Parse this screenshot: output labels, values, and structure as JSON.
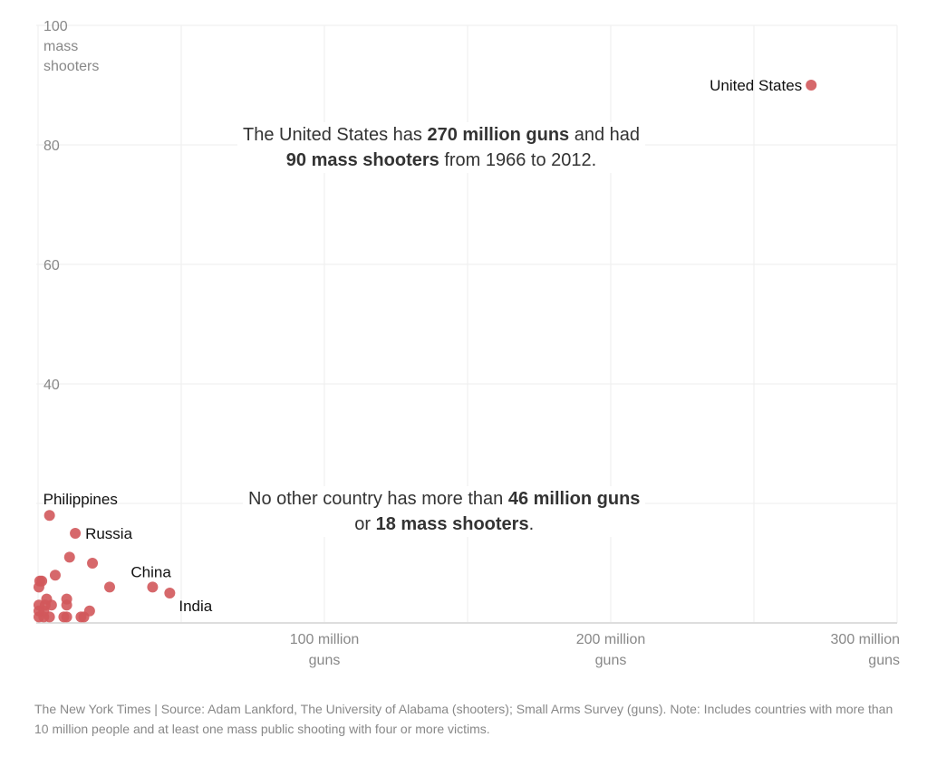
{
  "chart_data": {
    "type": "scatter",
    "xlim": [
      0,
      300
    ],
    "ylim": [
      0,
      100
    ],
    "grid": true,
    "x_unit": "million guns",
    "y_ticks": [
      {
        "value": 100,
        "label": "100"
      },
      {
        "value": 80,
        "label": "80"
      },
      {
        "value": 60,
        "label": "60"
      },
      {
        "value": 40,
        "label": "40"
      }
    ],
    "y_unit_label": [
      "mass",
      "shooters"
    ],
    "x_ticks": [
      {
        "value": 100,
        "label": [
          "100 million",
          "guns"
        ]
      },
      {
        "value": 200,
        "label": [
          "200 million",
          "guns"
        ]
      },
      {
        "value": 300,
        "label": [
          "300 million",
          "guns"
        ]
      }
    ],
    "point_color": "#d1585b",
    "points": [
      {
        "x": 270,
        "y": 90,
        "label": "United States"
      },
      {
        "x": 4,
        "y": 18,
        "label": "Philippines"
      },
      {
        "x": 13,
        "y": 15,
        "label": "Russia"
      },
      {
        "x": 40,
        "y": 6,
        "label": "China"
      },
      {
        "x": 46,
        "y": 5,
        "label": "India"
      },
      {
        "x": 11,
        "y": 11
      },
      {
        "x": 19,
        "y": 10
      },
      {
        "x": 6,
        "y": 8
      },
      {
        "x": 0.6,
        "y": 7
      },
      {
        "x": 1.3,
        "y": 7
      },
      {
        "x": 0.3,
        "y": 6
      },
      {
        "x": 25,
        "y": 6
      },
      {
        "x": 3,
        "y": 4
      },
      {
        "x": 10,
        "y": 4
      },
      {
        "x": 10,
        "y": 3
      },
      {
        "x": 0.3,
        "y": 3
      },
      {
        "x": 2.5,
        "y": 3
      },
      {
        "x": 4.7,
        "y": 3
      },
      {
        "x": 18,
        "y": 2
      },
      {
        "x": 0.3,
        "y": 2
      },
      {
        "x": 2,
        "y": 2
      },
      {
        "x": 0.3,
        "y": 1
      },
      {
        "x": 2,
        "y": 1
      },
      {
        "x": 4,
        "y": 1
      },
      {
        "x": 9,
        "y": 1
      },
      {
        "x": 10,
        "y": 1
      },
      {
        "x": 15,
        "y": 1
      },
      {
        "x": 16,
        "y": 1
      }
    ],
    "annotations": [
      {
        "parts": [
          [
            "The United States has ",
            false
          ],
          [
            "270 million guns",
            true
          ],
          [
            " and had",
            false
          ],
          [
            "\n",
            false
          ],
          [
            "90 mass shooters",
            true
          ],
          [
            " from 1966 to 2012.",
            false
          ]
        ]
      },
      {
        "parts": [
          [
            "No other country has more than ",
            false
          ],
          [
            "46 million guns",
            true
          ],
          [
            "\n",
            false
          ],
          [
            "or ",
            false
          ],
          [
            "18 mass shooters",
            true
          ],
          [
            ".",
            false
          ]
        ]
      }
    ]
  },
  "footer": "The New York Times  |  Source: Adam Lankford, The University of Alabama (shooters); Small Arms Survey (guns). Note: Includes countries with more than 10 million people and at least one mass public shooting with four or more victims."
}
